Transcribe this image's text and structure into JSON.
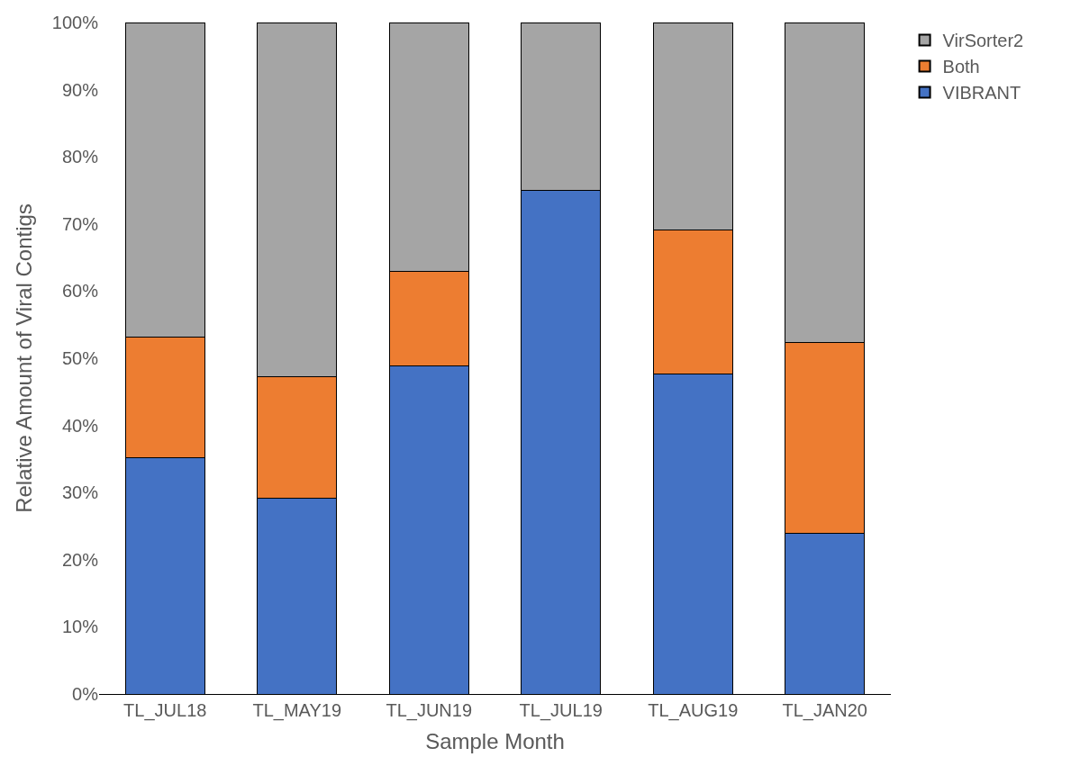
{
  "chart_data": {
    "type": "bar",
    "stacked": true,
    "xlabel": "Sample Month",
    "ylabel": "Relative Amount of Viral Contigs",
    "categories": [
      "TL_JUL18",
      "TL_MAY19",
      "TL_JUN19",
      "TL_JUL19",
      "TL_AUG19",
      "TL_JAN20"
    ],
    "series": [
      {
        "name": "VIBRANT",
        "color": "#4472c4",
        "values": [
          35.2,
          29.1,
          48.9,
          75.0,
          47.7,
          23.9
        ]
      },
      {
        "name": "Both",
        "color": "#ed7d31",
        "values": [
          17.9,
          18.2,
          14.0,
          0,
          21.4,
          28.4
        ]
      },
      {
        "name": "VirSorter2",
        "color": "#a5a5a5",
        "values": [
          46.9,
          52.7,
          37.1,
          25.0,
          30.9,
          47.7
        ]
      }
    ],
    "ylim": [
      0,
      100
    ],
    "yticks": [
      {
        "value": 0,
        "label": "0%"
      },
      {
        "value": 10,
        "label": "10%"
      },
      {
        "value": 20,
        "label": "20%"
      },
      {
        "value": 30,
        "label": "30%"
      },
      {
        "value": 40,
        "label": "40%"
      },
      {
        "value": 50,
        "label": "50%"
      },
      {
        "value": 60,
        "label": "60%"
      },
      {
        "value": 70,
        "label": "70%"
      },
      {
        "value": 80,
        "label": "80%"
      },
      {
        "value": 90,
        "label": "90%"
      },
      {
        "value": 100,
        "label": "100%"
      }
    ],
    "legend": "right"
  }
}
